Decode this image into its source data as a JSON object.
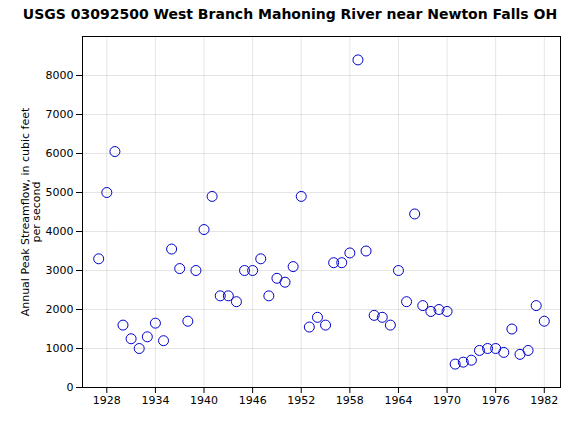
{
  "chart_data": {
    "type": "scatter",
    "title": "USGS 03092500 West Branch Mahoning River near Newton Falls OH",
    "ylabel": "Annual Peak Streamflow, in cubic feet\nper second",
    "x": [
      1927,
      1928,
      1929,
      1930,
      1931,
      1932,
      1933,
      1934,
      1935,
      1936,
      1937,
      1938,
      1939,
      1940,
      1941,
      1942,
      1943,
      1944,
      1945,
      1946,
      1947,
      1948,
      1949,
      1950,
      1951,
      1952,
      1953,
      1954,
      1955,
      1956,
      1957,
      1958,
      1959,
      1960,
      1961,
      1962,
      1963,
      1964,
      1965,
      1966,
      1967,
      1968,
      1969,
      1970,
      1971,
      1972,
      1973,
      1974,
      1975,
      1976,
      1977,
      1978,
      1979,
      1980,
      1981,
      1982
    ],
    "values": [
      3300,
      5000,
      6050,
      1600,
      1250,
      1000,
      1300,
      1650,
      1200,
      3550,
      3050,
      1700,
      3000,
      4050,
      4900,
      2350,
      2350,
      2200,
      3000,
      3000,
      3300,
      2350,
      2800,
      2700,
      3100,
      4900,
      1550,
      1800,
      1600,
      3200,
      3200,
      3450,
      8400,
      3500,
      1850,
      1800,
      1600,
      3000,
      2200,
      4450,
      2100,
      1950,
      2000,
      1950,
      600,
      650,
      700,
      950,
      1000,
      1000,
      900,
      1500,
      850,
      950,
      2100,
      1700
    ],
    "color": "#0000cc",
    "marker": "o",
    "xlim": [
      1925,
      1984
    ],
    "ylim": [
      0,
      9000
    ],
    "xticks": [
      1928,
      1934,
      1940,
      1946,
      1952,
      1958,
      1964,
      1970,
      1976,
      1982
    ],
    "yticks": [
      0,
      1000,
      2000,
      3000,
      4000,
      5000,
      6000,
      7000,
      8000
    ],
    "grid": true
  }
}
